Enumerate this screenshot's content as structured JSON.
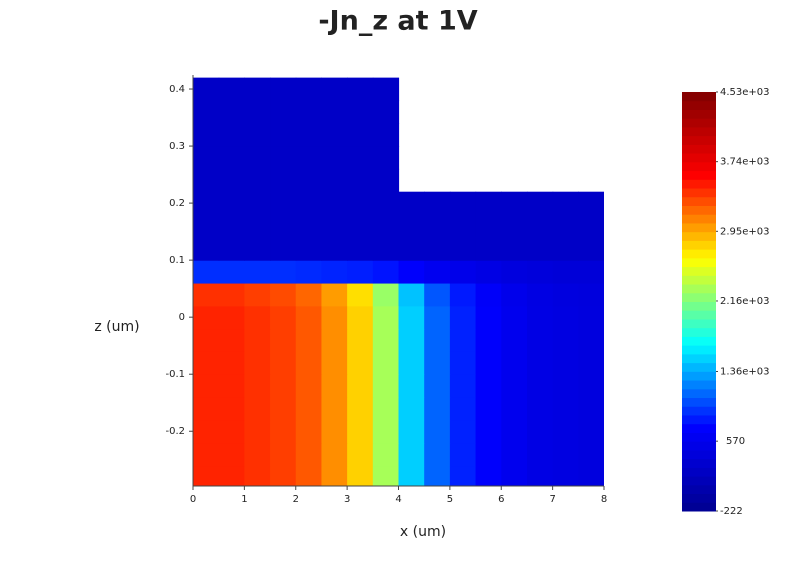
{
  "chart_data": {
    "type": "heatmap",
    "title": "-Jn_z at 1V",
    "xlabel": "x (um)",
    "ylabel": "z (um)",
    "xlim": [
      0,
      8
    ],
    "ylim": [
      -0.296,
      0.4246
    ],
    "xticks": [
      0,
      1,
      2,
      3,
      4,
      5,
      6,
      7,
      8
    ],
    "yticks": [
      -0.2,
      -0.1,
      0,
      0.1,
      0.2,
      0.3,
      0.4
    ],
    "x": [
      0.25,
      0.75,
      1.25,
      1.75,
      2.25,
      2.75,
      3.25,
      3.75,
      4.25,
      4.75,
      5.25,
      5.75,
      6.25,
      6.75,
      7.25,
      7.75
    ],
    "y": [
      -0.28,
      -0.24,
      -0.2,
      -0.16,
      -0.12,
      -0.08,
      -0.04,
      0,
      0.04,
      0.08,
      0.12,
      0.16,
      0.2,
      0.24,
      0.28,
      0.32,
      0.36,
      0.4
    ],
    "z": [
      [
        3450,
        3450,
        3400,
        3350,
        3250,
        3050,
        2800,
        2300,
        1500,
        1100,
        850,
        700,
        580,
        500,
        470,
        450
      ],
      [
        3450,
        3450,
        3400,
        3350,
        3250,
        3050,
        2800,
        2300,
        1500,
        1100,
        850,
        700,
        580,
        500,
        470,
        450
      ],
      [
        3450,
        3450,
        3400,
        3350,
        3250,
        3050,
        2800,
        2300,
        1500,
        1100,
        850,
        700,
        580,
        500,
        470,
        450
      ],
      [
        3450,
        3450,
        3400,
        3350,
        3250,
        3050,
        2800,
        2300,
        1500,
        1100,
        850,
        700,
        580,
        500,
        470,
        450
      ],
      [
        3450,
        3450,
        3400,
        3350,
        3250,
        3050,
        2800,
        2300,
        1500,
        1100,
        850,
        700,
        580,
        500,
        470,
        450
      ],
      [
        3450,
        3450,
        3400,
        3350,
        3250,
        3050,
        2800,
        2300,
        1500,
        1100,
        850,
        700,
        580,
        500,
        470,
        450
      ],
      [
        3450,
        3450,
        3400,
        3350,
        3250,
        3050,
        2800,
        2300,
        1500,
        1100,
        850,
        700,
        580,
        500,
        470,
        450
      ],
      [
        3450,
        3450,
        3400,
        3350,
        3250,
        3050,
        2800,
        2300,
        1500,
        1100,
        850,
        700,
        580,
        500,
        470,
        450
      ],
      [
        3400,
        3400,
        3350,
        3300,
        3200,
        3000,
        2750,
        2250,
        1450,
        1050,
        820,
        680,
        560,
        490,
        460,
        440
      ],
      [
        900,
        900,
        900,
        900,
        880,
        860,
        840,
        800,
        700,
        600,
        550,
        500,
        450,
        420,
        400,
        400
      ],
      [
        250,
        250,
        250,
        250,
        250,
        250,
        250,
        250,
        250,
        250,
        250,
        250,
        250,
        250,
        250,
        250
      ],
      [
        250,
        250,
        250,
        250,
        250,
        250,
        250,
        250,
        250,
        250,
        250,
        250,
        250,
        250,
        250,
        250
      ],
      [
        250,
        250,
        250,
        250,
        250,
        250,
        250,
        250,
        250,
        250,
        250,
        250,
        250,
        250,
        250,
        250
      ],
      [
        250,
        250,
        250,
        250,
        250,
        250,
        250,
        250,
        null,
        null,
        null,
        null,
        null,
        null,
        null,
        null
      ],
      [
        250,
        250,
        250,
        250,
        250,
        250,
        250,
        250,
        null,
        null,
        null,
        null,
        null,
        null,
        null,
        null
      ],
      [
        250,
        250,
        250,
        250,
        250,
        250,
        250,
        250,
        null,
        null,
        null,
        null,
        null,
        null,
        null,
        null
      ],
      [
        250,
        250,
        250,
        250,
        250,
        250,
        250,
        250,
        null,
        null,
        null,
        null,
        null,
        null,
        null,
        null
      ],
      [
        250,
        250,
        250,
        250,
        250,
        250,
        250,
        250,
        null,
        null,
        null,
        null,
        null,
        null,
        null,
        null
      ]
    ],
    "clim": [
      -222,
      4530
    ],
    "cticks": [
      {
        "value": -222,
        "label": "-222"
      },
      570,
      {
        "value": 1360,
        "label": "1.36e+03"
      },
      {
        "value": 2160,
        "label": "2.16e+03"
      },
      {
        "value": 2950,
        "label": "2.95e+03"
      },
      {
        "value": 3740,
        "label": "3.74e+03"
      },
      {
        "value": 4530,
        "label": "4.53e+03"
      }
    ],
    "colorscale": [
      "#00008f",
      "#0000ff",
      "#00ffff",
      "#ffff00",
      "#ff0000",
      "#800000"
    ]
  }
}
